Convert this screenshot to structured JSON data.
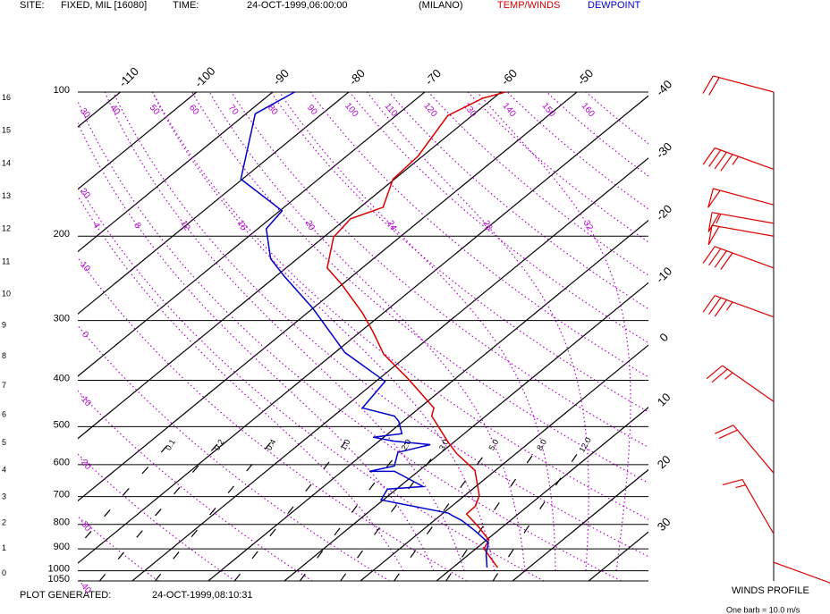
{
  "chart_data": {
    "type": "skew-t",
    "site_label": "SITE:",
    "site": "FIXED, MIL [16080]",
    "time_label": "TIME:",
    "time": "24-OCT-1999,06:00:00",
    "station": "(MILANO)",
    "footer_label": "PLOT GENERATED:",
    "generated": "24-OCT-1999,08:10:31",
    "yscale": "log",
    "ylim": [
      100,
      1050
    ],
    "yticks": [
      100,
      200,
      300,
      400,
      500,
      600,
      700,
      800,
      900,
      1000,
      1050
    ],
    "xlim": [
      -115.6,
      -40.6
    ],
    "xticks": [
      -110,
      -100,
      -90,
      -80,
      -70,
      -60,
      -50,
      -40,
      -30,
      -20,
      -10,
      0,
      10,
      20,
      30
    ],
    "altitude_ticks": [
      0,
      1,
      2,
      3,
      4,
      5,
      6,
      7,
      8,
      9,
      10,
      11,
      12,
      13,
      14,
      15,
      16
    ],
    "dry_adiabats": [
      -40,
      -30,
      -20,
      -10,
      0,
      10,
      20,
      30,
      40,
      50,
      60,
      70,
      80,
      90,
      100,
      110,
      120,
      130,
      140,
      150,
      160
    ],
    "moist_adiabats": [
      4,
      8,
      12,
      16,
      20,
      24,
      28,
      32
    ],
    "mixing_ratios": [
      0.1,
      0.2,
      0.4,
      {
        "value": 1,
        "label": "1.0"
      },
      {
        "value": 2,
        "label": "2.0"
      },
      {
        "value": 3,
        "label": "3.0"
      },
      {
        "value": 5,
        "label": "5.0"
      },
      {
        "value": 8,
        "label": "8.0"
      },
      {
        "value": 12,
        "label": "12.0"
      }
    ],
    "series": [
      {
        "name": "TEMP/WINDS",
        "color": "#dd0000",
        "pressure": [
          985,
          900,
          862,
          809,
          761,
          732,
          696,
          617,
          569,
          538,
          504,
          475,
          457,
          397,
          353,
          317,
          289,
          252,
          233,
          201,
          184,
          174,
          152,
          136,
          112,
          103,
          100
        ],
        "values": [
          15.9,
          11.1,
          10.3,
          6.8,
          3.2,
          3.1,
          1.9,
          -2.7,
          -7.8,
          -10.8,
          -14.1,
          -17.1,
          -18.1,
          -26.2,
          -33.3,
          -38.3,
          -42.8,
          -50.1,
          -54.6,
          -58.7,
          -59.4,
          -57.0,
          -60.2,
          -60.6,
          -63.2,
          -61.4,
          -59.4
        ]
      },
      {
        "name": "DEWPOINT",
        "color": "#0000cc",
        "pressure": [
          985,
          920,
          874,
          826,
          785,
          768,
          758,
          711,
          675,
          667,
          620,
          620,
          604,
          566,
          545,
          536,
          526,
          517,
          487,
          475,
          457,
          402,
          350,
          283,
          243,
          223,
          193,
          177,
          152,
          111,
          100
        ],
        "values": [
          14.5,
          12.1,
          10.7,
          7.1,
          3.6,
          1.7,
          0.7,
          -10.3,
          -11.2,
          -6.9,
          -13.1,
          -16.4,
          -14.0,
          -15.7,
          -12.7,
          -18.0,
          -21.4,
          -18.2,
          -20.6,
          -22.0,
          -27.5,
          -28.8,
          -38.7,
          -50.0,
          -58.8,
          -63.5,
          -68.9,
          -69.7,
          -80.2,
          -88.8,
          -87.1
        ]
      }
    ],
    "winds": {
      "title": "WINDS PROFILE",
      "note": "One barb = 10.0 m/s",
      "color": "#dd0000",
      "pressure": [
        100,
        145,
        172,
        188,
        200,
        233,
        295,
        443,
        625,
        837,
        960
      ],
      "direction": [
        285,
        290,
        285,
        280,
        280,
        290,
        290,
        305,
        320,
        330,
        110
      ],
      "speed": [
        20,
        45,
        50,
        55,
        50,
        40,
        35,
        25,
        20,
        15,
        10
      ]
    }
  }
}
